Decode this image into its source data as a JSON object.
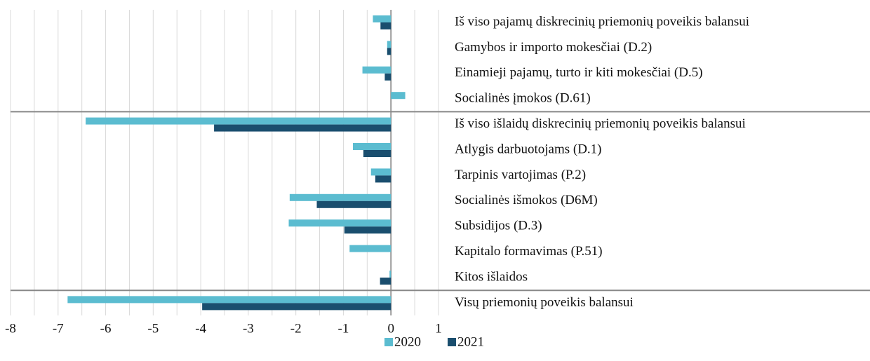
{
  "chart_data": {
    "type": "barh",
    "categories": [
      "Iš viso pajamų diskrecinių priemonių poveikis balansui",
      "Gamybos ir importo mokesčiai (D.2)",
      "Einamieji pajamų, turto ir kiti mokesčiai (D.5)",
      "Socialinės įmokos (D.61)",
      "Iš viso išlaidų diskrecinių priemonių poveikis balansui",
      "Atlygis darbuotojams (D.1)",
      "Tarpinis vartojimas (P.2)",
      "Socialinės išmokos (D6M)",
      "Subsidijos (D.3)",
      "Kapitalo formavimas (P.51)",
      "Kitos išlaidos",
      "Visų priemonių poveikis balansui"
    ],
    "series": [
      {
        "name": "2020",
        "color": "#5bbcd0",
        "values": [
          -0.38,
          -0.08,
          -0.6,
          0.3,
          -6.42,
          -0.8,
          -0.42,
          -2.13,
          -2.15,
          -0.87,
          -0.03,
          -6.8
        ]
      },
      {
        "name": "2021",
        "color": "#1a4e6e",
        "values": [
          -0.22,
          -0.08,
          -0.13,
          0,
          -3.72,
          -0.58,
          -0.33,
          -1.56,
          -0.98,
          0,
          -0.23,
          -3.97
        ]
      }
    ],
    "xlim": [
      -8,
      1
    ],
    "xticks": [
      -8,
      -7,
      -6,
      -5,
      -4,
      -3,
      -2,
      -1,
      0,
      1
    ],
    "xminorticks": [
      -7.5,
      -6.5,
      -5.5,
      -4.5,
      -3.5,
      -2.5,
      -1.5,
      -0.5,
      0.5
    ],
    "grid": true,
    "legend": "bottom"
  }
}
